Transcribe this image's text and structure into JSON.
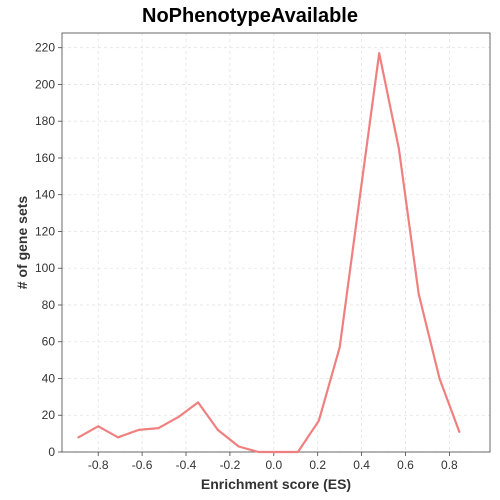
{
  "chart_data": {
    "type": "line",
    "title": "NoPhenotypeAvailable",
    "xlabel": "Enrichment score (ES)",
    "ylabel": "# of gene sets",
    "xlim": [
      -0.965,
      0.985
    ],
    "ylim": [
      0,
      228
    ],
    "x_ticks": [
      -0.8,
      -0.6,
      -0.4,
      -0.2,
      0.0,
      0.2,
      0.4,
      0.6,
      0.8
    ],
    "x_tick_labels": [
      "-0.8",
      "-0.6",
      "-0.4",
      "-0.2",
      "0.0",
      "0.2",
      "0.4",
      "0.6",
      "0.8"
    ],
    "y_ticks": [
      0,
      20,
      40,
      60,
      80,
      100,
      120,
      140,
      160,
      180,
      200,
      220
    ],
    "y_tick_labels": [
      "0",
      "20",
      "40",
      "60",
      "80",
      "100",
      "120",
      "140",
      "160",
      "180",
      "200",
      "220"
    ],
    "grid": true,
    "series": [
      {
        "color": "#f08080",
        "x": [
          -0.89,
          -0.8,
          -0.71,
          -0.615,
          -0.525,
          -0.435,
          -0.345,
          -0.255,
          -0.16,
          -0.07,
          0.02,
          0.11,
          0.205,
          0.3,
          0.39,
          0.48,
          0.57,
          0.66,
          0.755,
          0.845
        ],
        "y": [
          8,
          14,
          8,
          12,
          13,
          19,
          27,
          12,
          3,
          0,
          0,
          0,
          17,
          57,
          137,
          217,
          165,
          86,
          40,
          11
        ]
      }
    ]
  }
}
